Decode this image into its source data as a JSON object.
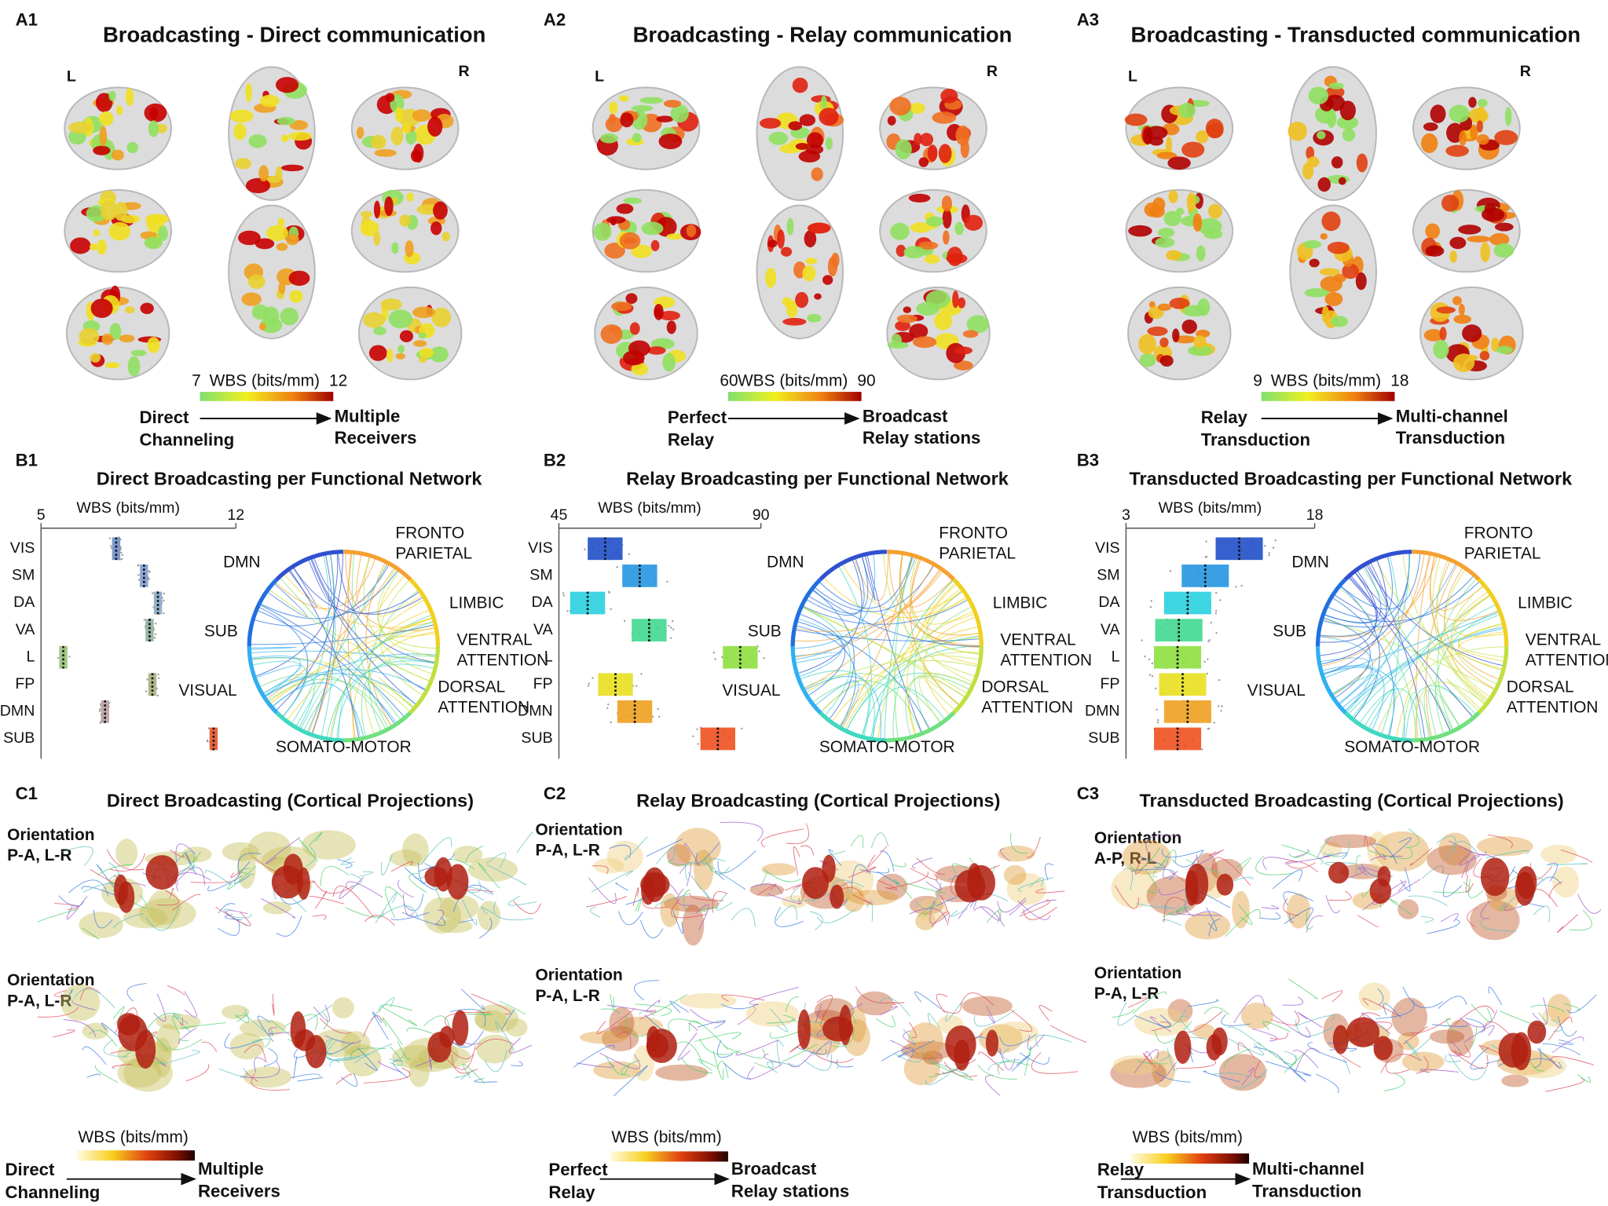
{
  "panels": {
    "A": [
      {
        "id": "A1",
        "title": "Broadcasting - Direct communication",
        "left": "L",
        "right": "R",
        "colorbar": {
          "min": 7,
          "label": "WBS (bits/mm)",
          "max": 12
        },
        "from": [
          "Direct",
          "Channeling"
        ],
        "to": [
          "Multiple",
          "Receivers"
        ]
      },
      {
        "id": "A2",
        "title": "Broadcasting - Relay communication",
        "left": "L",
        "right": "R",
        "colorbar": {
          "min": 60,
          "label": "WBS (bits/mm)",
          "max": 90
        },
        "from": [
          "Perfect",
          "Relay"
        ],
        "to": [
          "Broadcast",
          "Relay stations"
        ]
      },
      {
        "id": "A3",
        "title": "Broadcasting - Transducted communication",
        "left": "L",
        "right": "R",
        "colorbar": {
          "min": 9,
          "label": "WBS (bits/mm)",
          "max": 18
        },
        "from": [
          "Relay",
          "Transduction"
        ],
        "to": [
          "Multi-channel",
          "Transduction"
        ]
      }
    ],
    "B": [
      {
        "id": "B1",
        "title": "Direct Broadcasting per Functional Network",
        "chord_labels": [
          [
            "FRONTO",
            "PARIETAL"
          ],
          [
            "DMN"
          ],
          [
            "LIMBIC"
          ],
          [
            "SUB"
          ],
          [
            "VENTRAL",
            "ATTENTION"
          ],
          [
            "VISUAL"
          ],
          [
            "DORSAL",
            "ATTENTION"
          ],
          [
            "SOMATO-MOTOR"
          ]
        ]
      },
      {
        "id": "B2",
        "title": "Relay Broadcasting per Functional Network",
        "chord_labels": [
          [
            "FRONTO",
            "PARIETAL"
          ],
          [
            "DMN"
          ],
          [
            "LIMBIC"
          ],
          [
            "SUB"
          ],
          [
            "VENTRAL",
            "ATTENTION"
          ],
          [
            "VISUAL"
          ],
          [
            "DORSAL",
            "ATTENTION"
          ],
          [
            "SOMATO-MOTOR"
          ]
        ]
      },
      {
        "id": "B3",
        "title": "Transducted Broadcasting per Functional Network",
        "chord_labels": [
          [
            "FRONTO",
            "PARIETAL"
          ],
          [
            "DMN"
          ],
          [
            "LIMBIC"
          ],
          [
            "SUB"
          ],
          [
            "VENTRAL",
            "ATTENTION"
          ],
          [
            "VISUAL"
          ],
          [
            "DORSAL",
            "ATTENTION"
          ],
          [
            "SOMATO-MOTOR"
          ]
        ]
      }
    ],
    "C": [
      {
        "id": "C1",
        "title": "Direct Broadcasting (Cortical Projections)",
        "orientations": [
          [
            "Orientation",
            "P-A, L-R"
          ],
          [
            "Orientation",
            "P-A, L-R"
          ]
        ],
        "colorbar_label": "WBS (bits/mm)",
        "from": [
          "Direct",
          "Channeling"
        ],
        "to": [
          "Multiple",
          "Receivers"
        ]
      },
      {
        "id": "C2",
        "title": "Relay Broadcasting (Cortical Projections)",
        "orientations": [
          [
            "Orientation",
            "P-A, L-R"
          ],
          [
            "Orientation",
            "P-A, L-R"
          ]
        ],
        "colorbar_label": "WBS (bits/mm)",
        "from": [
          "Perfect",
          "Relay"
        ],
        "to": [
          "Broadcast",
          "Relay stations"
        ]
      },
      {
        "id": "C3",
        "title": "Transducted Broadcasting (Cortical Projections)",
        "orientations": [
          [
            "Orientation",
            "A-P, R-L"
          ],
          [
            "Orientation",
            "P-A, L-R"
          ]
        ],
        "colorbar_label": "WBS (bits/mm)",
        "from": [
          "Relay",
          "Transduction"
        ],
        "to": [
          "Multi-channel",
          "Transduction"
        ]
      }
    ]
  },
  "chart_data": [
    {
      "type": "strip",
      "xlabel": "WBS (bits/mm)",
      "xlim": [
        5,
        12
      ],
      "xticks": [
        5,
        12
      ],
      "categories": [
        "VIS",
        "SM",
        "DA",
        "VA",
        "L",
        "FP",
        "DMN",
        "SUB"
      ],
      "values": [
        7.7,
        8.7,
        9.2,
        8.9,
        5.8,
        9.0,
        7.3,
        11.2
      ],
      "colors": [
        "#6f8fc7",
        "#7f9fd0",
        "#8aa8c8",
        "#8fb0a0",
        "#9bc27a",
        "#a8b080",
        "#b8a0a0",
        "#e8582a"
      ]
    },
    {
      "type": "strip",
      "xlabel": "WBS (bits/mm)",
      "xlim": [
        45,
        90
      ],
      "xticks": [
        45,
        90
      ],
      "categories": [
        "VIS",
        "SM",
        "DA",
        "VA",
        "L",
        "FP",
        "DMN",
        "SUB"
      ],
      "values": [
        55.3,
        63.0,
        51.4,
        65.1,
        85.4,
        57.6,
        61.9,
        80.4
      ],
      "colors": [
        "#1f4fc8",
        "#2596e0",
        "#2ad0e0",
        "#40d890",
        "#8ee040",
        "#e8e020",
        "#f0a020",
        "#f05020"
      ]
    },
    {
      "type": "strip",
      "xlabel": "WBS (bits/mm)",
      "xlim": [
        3,
        18
      ],
      "xticks": [
        3,
        18
      ],
      "categories": [
        "VIS",
        "SM",
        "DA",
        "VA",
        "L",
        "FP",
        "DMN",
        "SUB"
      ],
      "values": [
        12.0,
        9.3,
        7.9,
        7.2,
        7.1,
        7.5,
        7.9,
        7.1
      ],
      "colors": [
        "#1f4fc8",
        "#2596e0",
        "#2ad0e0",
        "#40d890",
        "#8ee040",
        "#e8e020",
        "#f0a020",
        "#f05020"
      ]
    }
  ]
}
